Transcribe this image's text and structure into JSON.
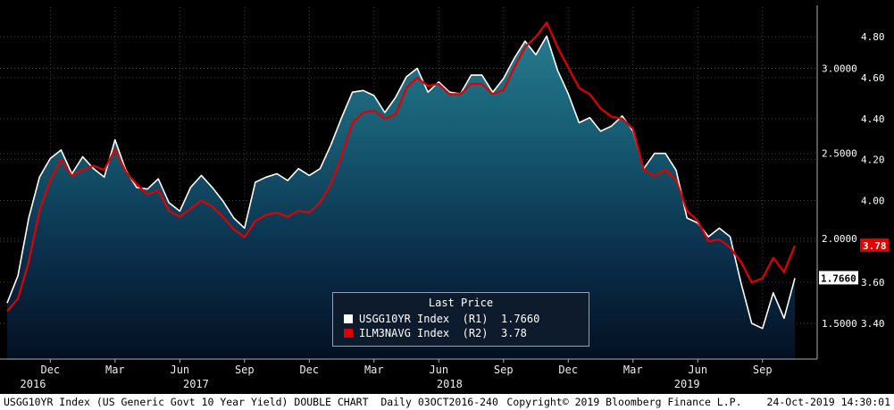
{
  "chart_data": {
    "type": "line",
    "title": "Last Price",
    "x_unit": "semi-monthly samples, Oct 2016 - Oct 2019",
    "series": [
      {
        "name": "USGG10YR Index",
        "axis": "R1",
        "color": "#ffffff",
        "last_price": "1.7660",
        "legend_label": "USGG10YR Index  (R1)  1.7660",
        "filled_area": true,
        "values": [
          1.62,
          1.78,
          2.12,
          2.36,
          2.47,
          2.52,
          2.38,
          2.48,
          2.41,
          2.36,
          2.58,
          2.4,
          2.3,
          2.29,
          2.35,
          2.21,
          2.16,
          2.3,
          2.37,
          2.3,
          2.22,
          2.12,
          2.06,
          2.33,
          2.36,
          2.38,
          2.34,
          2.41,
          2.37,
          2.41,
          2.55,
          2.71,
          2.86,
          2.87,
          2.84,
          2.74,
          2.83,
          2.95,
          3.0,
          2.86,
          2.92,
          2.86,
          2.85,
          2.96,
          2.96,
          2.86,
          2.94,
          3.06,
          3.16,
          3.08,
          3.19,
          2.99,
          2.85,
          2.68,
          2.71,
          2.63,
          2.66,
          2.72,
          2.63,
          2.41,
          2.5,
          2.5,
          2.4,
          2.12,
          2.09,
          2.01,
          2.06,
          2.01,
          1.74,
          1.5,
          1.47,
          1.68,
          1.53,
          1.766
        ]
      },
      {
        "name": "ILM3NAVG Index",
        "axis": "R2",
        "color": "#e10000",
        "last_price": "3.78",
        "legend_label": "ILM3NAVG Index  (R2)  3.78",
        "filled_area": false,
        "values": [
          3.46,
          3.52,
          3.7,
          3.95,
          4.1,
          4.2,
          4.12,
          4.15,
          4.17,
          4.15,
          4.25,
          4.14,
          4.08,
          4.03,
          4.05,
          3.95,
          3.92,
          3.96,
          4.0,
          3.97,
          3.92,
          3.86,
          3.82,
          3.9,
          3.93,
          3.94,
          3.92,
          3.95,
          3.94,
          3.99,
          4.08,
          4.22,
          4.38,
          4.43,
          4.44,
          4.4,
          4.42,
          4.55,
          4.6,
          4.56,
          4.57,
          4.52,
          4.52,
          4.57,
          4.57,
          4.52,
          4.54,
          4.65,
          4.75,
          4.8,
          4.87,
          4.75,
          4.65,
          4.55,
          4.52,
          4.45,
          4.41,
          4.4,
          4.35,
          4.15,
          4.12,
          4.15,
          4.1,
          3.95,
          3.9,
          3.8,
          3.81,
          3.77,
          3.7,
          3.6,
          3.62,
          3.72,
          3.65,
          3.78
        ]
      }
    ],
    "axes": {
      "r1": {
        "range": [
          1.29,
          3.36
        ],
        "ticks": [
          {
            "v": 3.0,
            "label": "3.0000"
          },
          {
            "v": 2.5,
            "label": "2.5000"
          },
          {
            "v": 2.0,
            "label": "2.0000"
          },
          {
            "v": 1.5,
            "label": "1.5000"
          }
        ],
        "last": {
          "v": 1.766,
          "label": "1.7660"
        }
      },
      "r2": {
        "range": [
          3.225,
          4.945
        ],
        "ticks": [
          {
            "v": 4.8,
            "label": "4.80"
          },
          {
            "v": 4.6,
            "label": "4.60"
          },
          {
            "v": 4.4,
            "label": "4.40"
          },
          {
            "v": 4.2,
            "label": "4.20"
          },
          {
            "v": 4.0,
            "label": "4.00"
          },
          {
            "v": 3.6,
            "label": "3.60"
          },
          {
            "v": 3.4,
            "label": "3.40"
          }
        ],
        "grid_values": [
          4.8,
          4.6,
          4.4,
          4.2,
          4.0,
          3.8,
          3.6,
          3.4
        ],
        "last": {
          "v": 3.78,
          "label": "3.78"
        }
      }
    },
    "x_ticks": [
      {
        "label": "Dec",
        "pos": 4
      },
      {
        "label": "Mar",
        "pos": 10
      },
      {
        "label": "Jun",
        "pos": 16
      },
      {
        "label": "Sep",
        "pos": 22
      },
      {
        "label": "Dec",
        "pos": 28
      },
      {
        "label": "Mar",
        "pos": 34
      },
      {
        "label": "Jun",
        "pos": 40
      },
      {
        "label": "Sep",
        "pos": 46
      },
      {
        "label": "Dec",
        "pos": 52
      },
      {
        "label": "Mar",
        "pos": 58
      },
      {
        "label": "Jun",
        "pos": 64
      },
      {
        "label": "Sep",
        "pos": 70
      }
    ],
    "year_labels": [
      {
        "label": "2016",
        "pos": 2.4
      },
      {
        "label": "2017",
        "pos": 17.5
      },
      {
        "label": "2018",
        "pos": 41.0
      },
      {
        "label": "2019",
        "pos": 63.0
      }
    ],
    "colors": {
      "background": "#000000",
      "grid": "#3f3f3f",
      "axis_line": "#b0b0b0"
    },
    "area_gradient": [
      {
        "offset": "0%",
        "color": "#2b8395"
      },
      {
        "offset": "35%",
        "color": "#175d74"
      },
      {
        "offset": "70%",
        "color": "#0a2f4c"
      },
      {
        "offset": "100%",
        "color": "#041022"
      }
    ],
    "legend": {
      "title": "Last Price"
    }
  },
  "status_bar": {
    "left": "USGG10YR Index (US Generic Govt 10 Year Yield) DOUBLE CHART  Daily 03OCT2016-240",
    "copyright": "Copyright© 2019 Bloomberg Finance L.P.",
    "timestamp": "24-Oct-2019 14:30:01"
  }
}
